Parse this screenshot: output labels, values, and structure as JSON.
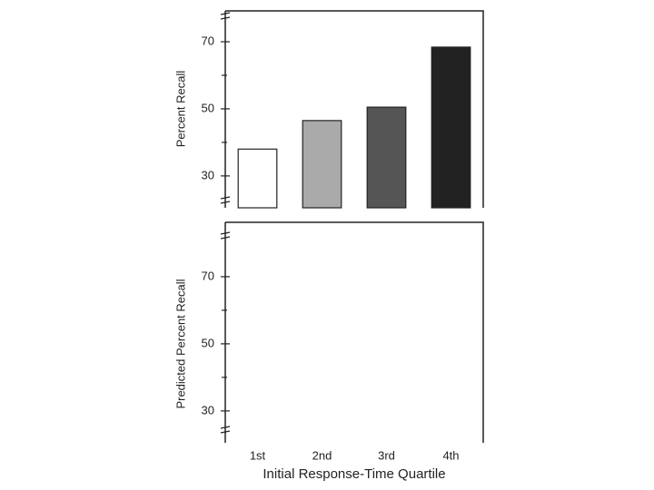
{
  "chart_data": [
    {
      "type": "bar",
      "y_label": "Percent Recall",
      "values": [
        38,
        46.5,
        50.5,
        68.4
      ],
      "colors": [
        "#ffffff",
        "#aaaaaa",
        "#555555",
        "#222222"
      ],
      "ylim": [
        20.5,
        79.2
      ],
      "yticks": [
        30,
        50,
        70
      ],
      "minor_yticks": [
        40,
        60
      ]
    },
    {
      "type": "bar",
      "y_label": "Predicted Percent Recall",
      "x_label": "Initial Response-Time Quartile",
      "categories": [
        "1st",
        "2nd",
        "3rd",
        "4th"
      ],
      "values": [
        null,
        null,
        null,
        null
      ],
      "ylim": [
        20.5,
        86.2
      ],
      "yticks": [
        30,
        50,
        70
      ],
      "minor_yticks": [
        40,
        60
      ]
    }
  ]
}
